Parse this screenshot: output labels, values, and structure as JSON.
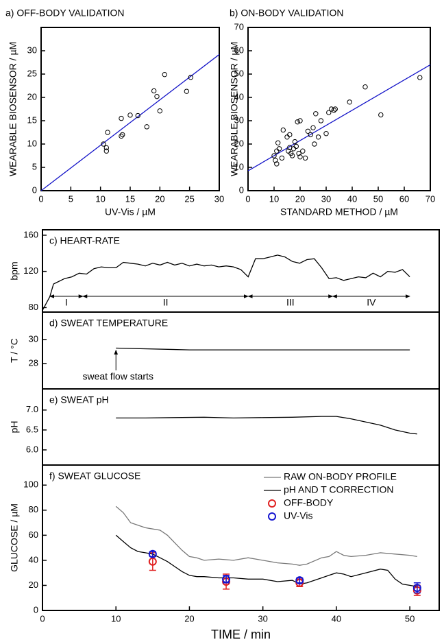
{
  "chart_data": [
    {
      "type": "scatter",
      "title": "a) OFF-BODY VALIDATION",
      "xlabel": "UV-Vis / µM",
      "ylabel": "WEARABLE BIOSENSOR / µM",
      "xlim": [
        0,
        30
      ],
      "ylim": [
        0,
        35
      ],
      "xticks": [
        0,
        5,
        10,
        15,
        20,
        25,
        30
      ],
      "yticks": [
        0,
        5,
        10,
        15,
        20,
        25,
        30
      ],
      "x": [
        10.5,
        11,
        11,
        11.2,
        13.5,
        13.7,
        13.5,
        15,
        16.3,
        17.8,
        19,
        19.5,
        20,
        20.8,
        24.5,
        25.2
      ],
      "values": [
        10,
        9.2,
        8.5,
        12.5,
        11.7,
        12,
        15.5,
        16.2,
        16.1,
        13.7,
        21.4,
        20.2,
        17.1,
        24.9,
        21.3,
        24.3
      ],
      "fit_line": {
        "x": [
          0,
          30
        ],
        "y": [
          0,
          29.2
        ],
        "color": "#1414c8"
      }
    },
    {
      "type": "scatter",
      "title": "b) ON-BODY VALIDATION",
      "xlabel": "STANDARD METHOD / µM",
      "ylabel": "WEARABLE BIOSENSOR / µM",
      "xlim": [
        0,
        70
      ],
      "ylim": [
        0,
        70
      ],
      "xticks": [
        0,
        10,
        20,
        30,
        40,
        50,
        60,
        70
      ],
      "yticks": [
        0,
        10,
        20,
        30,
        40,
        50,
        60,
        70
      ],
      "x": [
        10,
        10.5,
        11,
        11,
        11.5,
        12,
        13,
        13.5,
        15,
        15.5,
        16,
        16,
        16.5,
        17,
        17.5,
        18,
        18.5,
        19,
        19.5,
        20,
        20,
        21,
        22,
        23,
        24,
        25,
        25.5,
        26,
        27,
        28,
        30,
        31,
        32,
        33,
        33.5,
        39,
        45,
        51,
        66
      ],
      "values": [
        15,
        13,
        11.5,
        17,
        20.5,
        18,
        14,
        26,
        23,
        17,
        24,
        18.5,
        16,
        15,
        18,
        21,
        19,
        29.5,
        16,
        14.5,
        30,
        17,
        14,
        25.5,
        24,
        27,
        20,
        33,
        23,
        30,
        24.5,
        33.5,
        35,
        34.5,
        35,
        38,
        44.5,
        32.5,
        48.5
      ],
      "fit_line": {
        "x": [
          0,
          70
        ],
        "y": [
          8.5,
          54
        ],
        "color": "#1414c8"
      }
    },
    {
      "type": "line",
      "title": "c) HEART-RATE",
      "ylabel": "bpm",
      "xlim": [
        0,
        54
      ],
      "ylim": [
        75,
        166
      ],
      "yticks": [
        80,
        120,
        160
      ],
      "color": "#000000",
      "x": [
        0,
        1,
        1.5,
        2,
        3,
        4,
        5,
        6,
        7,
        8,
        9,
        10,
        11,
        12,
        13,
        14,
        15,
        16,
        17,
        18,
        19,
        20,
        21,
        22,
        23,
        24,
        25,
        26,
        27,
        28,
        29,
        30,
        31,
        32,
        33,
        34,
        35,
        36,
        37,
        38,
        39,
        40,
        41,
        42,
        43,
        44,
        45,
        46,
        47,
        48,
        49,
        50
      ],
      "values": [
        77,
        92,
        106,
        108,
        112,
        114,
        118,
        117,
        123,
        125,
        124,
        124,
        130,
        129,
        128,
        126,
        129,
        127,
        130,
        127,
        129,
        126,
        128,
        126,
        127,
        125,
        126,
        125,
        122,
        114,
        134,
        134,
        136,
        138,
        136,
        131,
        129,
        133,
        134,
        124,
        112,
        113,
        110,
        112,
        114,
        113,
        118,
        114,
        120,
        119,
        122,
        114
      ],
      "phases": [
        {
          "label": "I",
          "start": 1,
          "end": 5.5
        },
        {
          "label": "II",
          "start": 5.5,
          "end": 28
        },
        {
          "label": "III",
          "start": 28,
          "end": 39.5
        },
        {
          "label": "IV",
          "start": 39.5,
          "end": 50
        }
      ]
    },
    {
      "type": "line",
      "title": "d) SWEAT TEMPERATURE",
      "ylabel": "T / °C",
      "xlim": [
        0,
        54
      ],
      "ylim": [
        25.9,
        32.3
      ],
      "yticks": [
        28,
        30
      ],
      "color": "#000000",
      "x": [
        10,
        20,
        30,
        40,
        50
      ],
      "values": [
        29.3,
        29.15,
        29.15,
        29.15,
        29.15
      ],
      "annotation": {
        "text": "sweat flow starts",
        "x": 10
      }
    },
    {
      "type": "line",
      "title": "e) SWEAT pH",
      "ylabel": "pH",
      "xlim": [
        0,
        54
      ],
      "ylim": [
        5.62,
        7.53
      ],
      "yticks": [
        {
          "value": 6,
          "label": "6.0"
        },
        6.5,
        {
          "value": 7,
          "label": "7.0"
        }
      ],
      "color": "#000000",
      "x": [
        10,
        14,
        18,
        22,
        26,
        30,
        34,
        38,
        40,
        42,
        44,
        46,
        48,
        50,
        51
      ],
      "values": [
        6.8,
        6.8,
        6.81,
        6.82,
        6.8,
        6.81,
        6.82,
        6.84,
        6.84,
        6.78,
        6.7,
        6.62,
        6.5,
        6.42,
        6.4
      ]
    },
    {
      "type": "line",
      "title": "f) SWEAT GLUCOSE",
      "ylabel": "GLUCOSE / µM",
      "xlabel": "TIME / min",
      "xlim": [
        0,
        54
      ],
      "ylim": [
        0,
        116
      ],
      "xticks": [
        0,
        10,
        20,
        30,
        40,
        50
      ],
      "yticks": [
        0,
        20,
        40,
        60,
        80,
        100
      ],
      "series": [
        {
          "name": "RAW ON-BODY PROFILE",
          "color": "#777777",
          "x": [
            10,
            11,
            12,
            13,
            14,
            15,
            16,
            17,
            18,
            19,
            20,
            21,
            22,
            24,
            26,
            28,
            30,
            32,
            34,
            35,
            36,
            38,
            39,
            40,
            41,
            42,
            44,
            46,
            48,
            50,
            51
          ],
          "values": [
            83,
            78,
            70,
            68,
            66,
            65,
            64,
            60,
            54,
            48,
            43,
            42,
            40,
            41,
            40,
            42,
            40,
            38,
            37,
            36,
            37,
            42,
            43,
            47,
            44,
            43,
            44,
            46,
            45,
            44,
            43
          ]
        },
        {
          "name": "pH AND T CORRECTION",
          "color": "#000000",
          "x": [
            10,
            11,
            12,
            13,
            14,
            15,
            16,
            17,
            18,
            19,
            20,
            21,
            22,
            24,
            26,
            28,
            30,
            32,
            34,
            35,
            36,
            38,
            39,
            40,
            41,
            42,
            44,
            46,
            47,
            48,
            49,
            50,
            51
          ],
          "values": [
            60,
            55,
            50,
            47,
            46,
            45,
            42,
            39,
            35,
            31,
            28,
            27,
            27,
            26,
            26,
            25,
            25,
            23,
            24,
            21,
            22,
            26,
            28,
            30,
            29,
            27,
            30,
            33,
            32,
            25,
            21,
            20,
            19
          ]
        },
        {
          "name": "OFF-BODY",
          "color": "#e02020",
          "marker": "circle",
          "x": [
            15,
            25,
            35,
            51
          ],
          "values": [
            39,
            23,
            22,
            16
          ],
          "errors": [
            7,
            6,
            3,
            4
          ]
        },
        {
          "name": "UV-Vis",
          "color": "#1515d0",
          "marker": "circle",
          "x": [
            15,
            25,
            35,
            51
          ],
          "values": [
            45,
            25,
            24,
            18
          ],
          "errors": [
            2,
            3,
            2,
            4
          ]
        }
      ]
    }
  ]
}
